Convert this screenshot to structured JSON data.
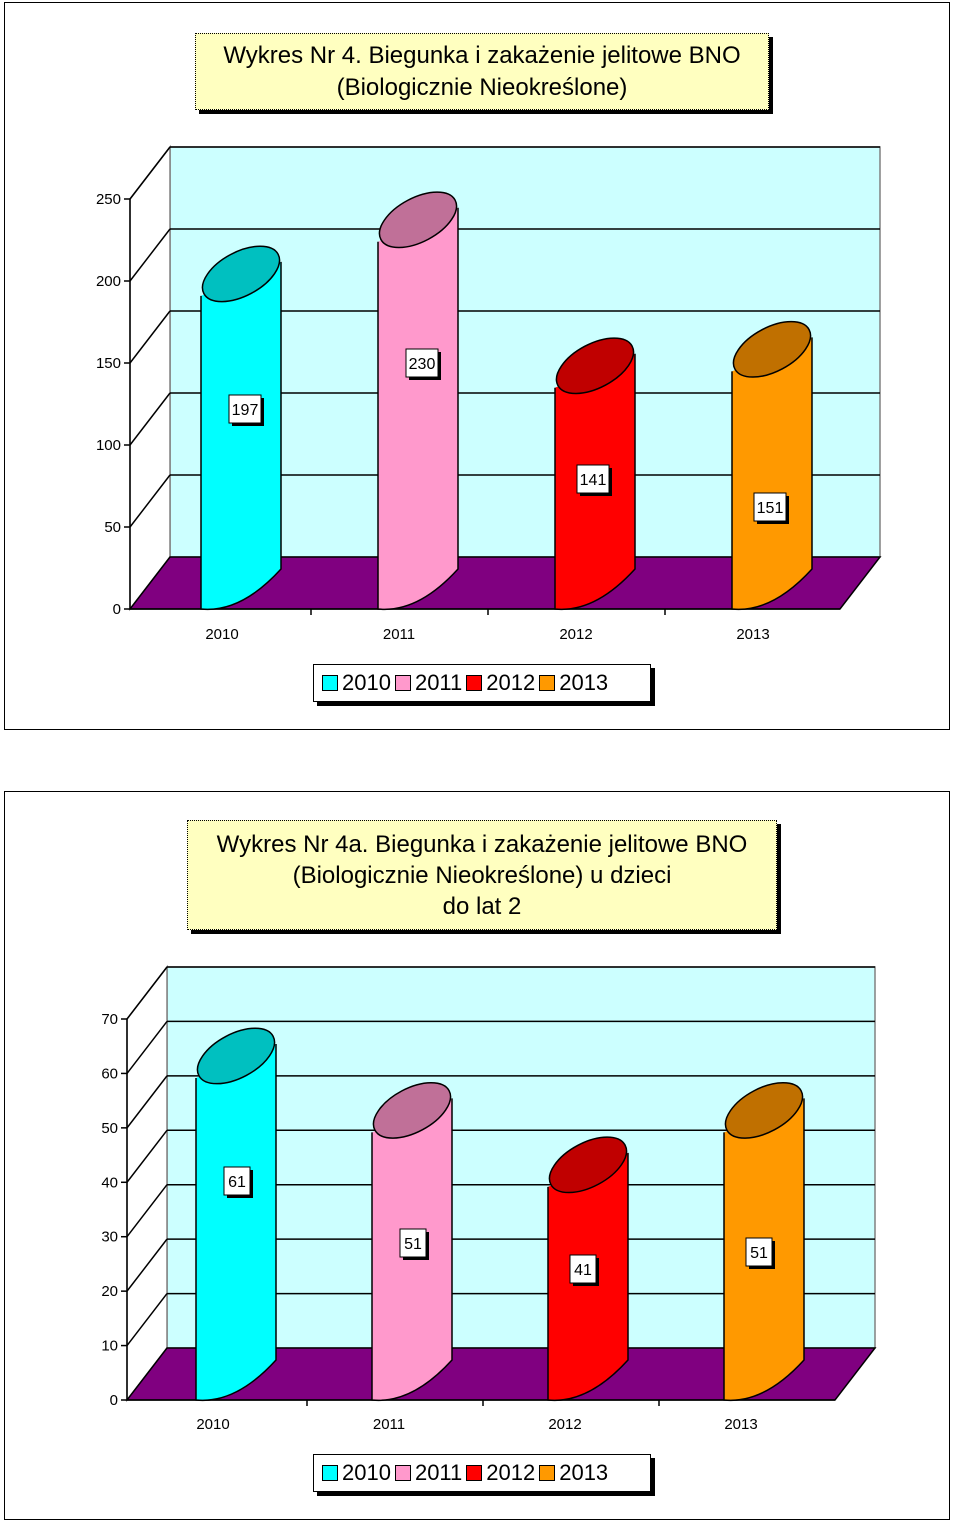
{
  "chart_data": [
    {
      "type": "bar",
      "title_lines": [
        "Wykres Nr 4. Biegunka i zakażenie jelitowe BNO",
        "(Biologicznie Nieokreślone)"
      ],
      "categories": [
        "2010",
        "2011",
        "2012",
        "2013"
      ],
      "values": [
        197,
        230,
        141,
        151
      ],
      "data_labels": [
        "197",
        "230",
        "141",
        "151"
      ],
      "yticks": [
        "0",
        "50",
        "100",
        "150",
        "200",
        "250"
      ],
      "ylim": [
        0,
        250
      ],
      "legend": [
        "2010",
        "2011",
        "2012",
        "2013"
      ],
      "legend_position": "bottom",
      "grid": true
    },
    {
      "type": "bar",
      "title_lines": [
        "Wykres Nr 4a. Biegunka i zakażenie jelitowe BNO",
        "(Biologicznie Nieokreślone) u dzieci",
        "do lat 2"
      ],
      "categories": [
        "2010",
        "2011",
        "2012",
        "2013"
      ],
      "values": [
        61,
        51,
        41,
        51
      ],
      "data_labels": [
        "61",
        "51",
        "41",
        "51"
      ],
      "yticks": [
        "0",
        "10",
        "20",
        "30",
        "40",
        "50",
        "60",
        "70"
      ],
      "ylim": [
        0,
        70
      ],
      "legend": [
        "2010",
        "2011",
        "2012",
        "2013"
      ],
      "legend_position": "bottom",
      "grid": true
    }
  ],
  "colors": {
    "bar_fills": [
      "#00ffff",
      "#ff99cc",
      "#ff0000",
      "#ff9900"
    ],
    "bar_tops": [
      "#00c0c0",
      "#c07098",
      "#c00000",
      "#c07000"
    ],
    "back_wall": "#ccffff",
    "floor": "#800080",
    "title_bg": "#ffffc0"
  }
}
